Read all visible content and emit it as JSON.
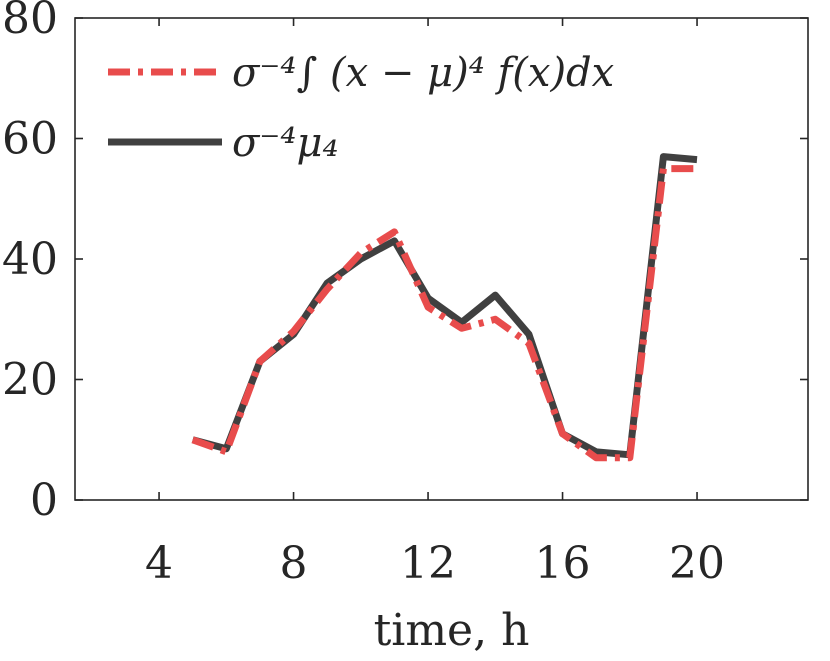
{
  "chart_data": {
    "type": "line",
    "xlabel": "time, h",
    "ylabel": "",
    "xlim": [
      1.5,
      23.3
    ],
    "ylim": [
      0,
      80
    ],
    "xticks": [
      4,
      8,
      12,
      16,
      20
    ],
    "yticks": [
      0,
      20,
      40,
      60,
      80
    ],
    "grid": false,
    "legend_position": "top-left",
    "series": [
      {
        "name": "σ⁻⁴∫ (x − μ)⁴ f(x)dx",
        "color": "#e84c4c",
        "line_style": "dash-dot",
        "x": [
          5,
          6,
          7,
          8,
          9,
          10,
          11,
          12,
          13,
          14,
          15,
          16,
          17,
          18,
          19,
          20
        ],
        "y": [
          10,
          8,
          23,
          28,
          35,
          41,
          44.5,
          32,
          28.5,
          30,
          26,
          11,
          7,
          7,
          55,
          55
        ]
      },
      {
        "name": "σ⁻⁴μ₄",
        "color": "#404040",
        "line_style": "solid",
        "x": [
          5,
          6,
          7,
          8,
          9,
          10,
          11,
          12,
          13,
          14,
          15,
          16,
          17,
          18,
          19,
          20
        ],
        "y": [
          10,
          8.5,
          23,
          27.5,
          36,
          40,
          43,
          33.5,
          29.5,
          34,
          27.5,
          11,
          8,
          7.5,
          57,
          56.5
        ]
      }
    ]
  }
}
